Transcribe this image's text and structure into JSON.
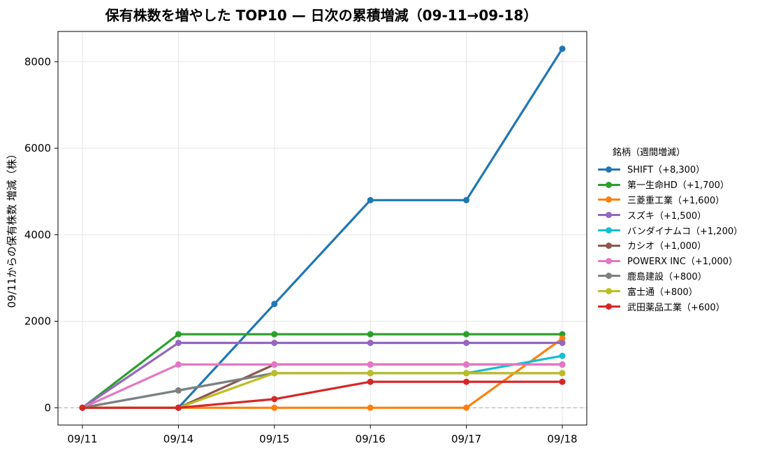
{
  "title": "保有株数を増やした TOP10 — 日次の累積増減（09-11→09-18）",
  "chart_data": {
    "type": "line",
    "title": "保有株数を増やした TOP10 — 日次の累積増減（09-11→09-18）",
    "xlabel": "",
    "ylabel": "09/11からの保有株数 増減（株）",
    "categories": [
      "09/11",
      "09/14",
      "09/15",
      "09/16",
      "09/17",
      "09/18"
    ],
    "ylim": [
      -400,
      8700
    ],
    "yticks": [
      0,
      2000,
      4000,
      6000,
      8000
    ],
    "grid": true,
    "zero_line": "dashed",
    "legend_title": "銘柄（週間増減）",
    "legend_position": "right",
    "series": [
      {
        "name": "SHIFT（+8,300）",
        "color": "#1f77b4",
        "values": [
          0,
          0,
          2400,
          4800,
          4800,
          8300
        ]
      },
      {
        "name": "第一生命HD（+1,700）",
        "color": "#2ca02c",
        "values": [
          0,
          1700,
          1700,
          1700,
          1700,
          1700
        ]
      },
      {
        "name": "三菱重工業（+1,600）",
        "color": "#ff7f0e",
        "values": [
          0,
          0,
          0,
          0,
          0,
          1600
        ]
      },
      {
        "name": "スズキ（+1,500）",
        "color": "#9467bd",
        "values": [
          0,
          1500,
          1500,
          1500,
          1500,
          1500
        ]
      },
      {
        "name": "バンダイナムコ（+1,200）",
        "color": "#17becf",
        "values": [
          0,
          400,
          800,
          800,
          800,
          1200
        ]
      },
      {
        "name": "カシオ（+1,000）",
        "color": "#8c564b",
        "values": [
          0,
          0,
          1000,
          1000,
          1000,
          1000
        ]
      },
      {
        "name": "POWERX INC（+1,000）",
        "color": "#e377c2",
        "values": [
          0,
          1000,
          1000,
          1000,
          1000,
          1000
        ]
      },
      {
        "name": "鹿島建設（+800）",
        "color": "#7f7f7f",
        "values": [
          0,
          400,
          800,
          800,
          800,
          800
        ]
      },
      {
        "name": "富士通（+800）",
        "color": "#bcbd22",
        "values": [
          0,
          0,
          800,
          800,
          800,
          800
        ]
      },
      {
        "name": "武田薬品工業（+600）",
        "color": "#d62728",
        "values": [
          0,
          0,
          200,
          600,
          600,
          600
        ]
      }
    ]
  }
}
